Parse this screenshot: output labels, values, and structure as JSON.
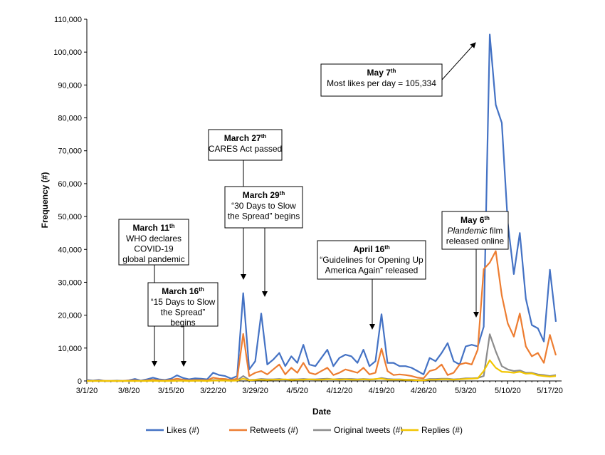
{
  "chart_data": {
    "type": "line",
    "x_label": "Date",
    "y_label": "Frequency (#)",
    "categories": [
      "3/1/20",
      null,
      null,
      null,
      null,
      null,
      null,
      "3/8/20",
      null,
      null,
      null,
      null,
      null,
      null,
      "3/15/20",
      null,
      null,
      null,
      null,
      null,
      null,
      "3/22/20",
      null,
      null,
      null,
      null,
      null,
      null,
      "3/29/20",
      null,
      null,
      null,
      null,
      null,
      null,
      "4/5/20",
      null,
      null,
      null,
      null,
      null,
      null,
      "4/12/20",
      null,
      null,
      null,
      null,
      null,
      null,
      "4/19/20",
      null,
      null,
      null,
      null,
      null,
      null,
      "4/26/20",
      null,
      null,
      null,
      null,
      null,
      null,
      "5/3/20",
      null,
      null,
      null,
      null,
      null,
      null,
      "5/10/20",
      null,
      null,
      null,
      null,
      null,
      null,
      "5/17/20",
      null
    ],
    "series": [
      {
        "name": "Likes (#)",
        "color": "#4472c4",
        "values": [
          300,
          100,
          300,
          0,
          0,
          100,
          0,
          200,
          600,
          100,
          500,
          1000,
          500,
          300,
          700,
          1700,
          900,
          500,
          800,
          700,
          500,
          2500,
          1800,
          1500,
          700,
          1500,
          26700,
          3500,
          6000,
          20500,
          5000,
          6500,
          8500,
          4500,
          7500,
          5500,
          11000,
          5000,
          4500,
          7000,
          9500,
          4500,
          7000,
          8000,
          7500,
          5500,
          9500,
          4500,
          6000,
          20300,
          5500,
          5500,
          4500,
          4500,
          4000,
          3000,
          2000,
          7000,
          6000,
          8500,
          11500,
          6000,
          5000,
          10500,
          11000,
          10500,
          16500,
          105334,
          84000,
          78500,
          48000,
          32500,
          45000,
          25000,
          17000,
          16000,
          12000,
          33800,
          18000
        ]
      },
      {
        "name": "Retweets (#)",
        "color": "#ed7d31",
        "values": [
          100,
          0,
          100,
          0,
          0,
          0,
          0,
          100,
          200,
          0,
          200,
          400,
          200,
          100,
          300,
          700,
          400,
          200,
          300,
          300,
          200,
          1000,
          700,
          600,
          300,
          700,
          14300,
          1500,
          2500,
          3000,
          2000,
          3500,
          5000,
          2000,
          4000,
          2500,
          5500,
          2500,
          2000,
          3000,
          4000,
          1800,
          2500,
          3500,
          3000,
          2500,
          4000,
          2000,
          2500,
          9800,
          3000,
          1800,
          2000,
          1800,
          1500,
          1000,
          800,
          3000,
          3500,
          5000,
          1800,
          2500,
          5000,
          5500,
          5000,
          9500,
          34000,
          36000,
          39500,
          26000,
          17500,
          13500,
          20500,
          10500,
          7500,
          8500,
          5500,
          14000,
          7800
        ]
      },
      {
        "name": "Original tweets (#)",
        "color": "#8c8c8c",
        "values": [
          0,
          0,
          0,
          0,
          0,
          0,
          0,
          0,
          50,
          0,
          50,
          100,
          50,
          0,
          50,
          150,
          100,
          50,
          100,
          100,
          50,
          300,
          200,
          200,
          100,
          200,
          1500,
          300,
          400,
          600,
          500,
          500,
          600,
          400,
          500,
          500,
          600,
          500,
          500,
          600,
          700,
          500,
          600,
          600,
          600,
          500,
          600,
          500,
          500,
          900,
          600,
          500,
          500,
          400,
          400,
          300,
          300,
          600,
          600,
          700,
          700,
          500,
          600,
          800,
          800,
          900,
          1500,
          14200,
          9000,
          4500,
          3500,
          3000,
          3200,
          2500,
          2500,
          2000,
          1800,
          1500,
          1800
        ]
      },
      {
        "name": "Replies (#)",
        "color": "#f2c500",
        "values": [
          0,
          0,
          0,
          0,
          0,
          0,
          0,
          0,
          0,
          0,
          0,
          50,
          0,
          0,
          0,
          50,
          50,
          0,
          50,
          50,
          0,
          100,
          100,
          100,
          50,
          100,
          700,
          200,
          300,
          400,
          300,
          400,
          400,
          500,
          300,
          400,
          400,
          500,
          400,
          400,
          500,
          500,
          400,
          500,
          400,
          400,
          500,
          400,
          600,
          700,
          400,
          400,
          400,
          300,
          300,
          200,
          200,
          400,
          400,
          500,
          500,
          400,
          500,
          600,
          700,
          800,
          3000,
          6300,
          4000,
          2800,
          2700,
          2500,
          2800,
          2200,
          2300,
          1700,
          1500,
          1300,
          1500
        ]
      }
    ],
    "ylim": [
      0,
      110000
    ],
    "yticks": [
      0,
      {
        "value": 10000,
        "label": "10,000"
      },
      {
        "value": 20000,
        "label": "20,000"
      },
      {
        "value": 30000,
        "label": "30,000"
      },
      {
        "value": 40000,
        "label": "40,000"
      },
      {
        "value": 50000,
        "label": "50,000"
      },
      {
        "value": 60000,
        "label": "60,000"
      },
      {
        "value": 70000,
        "label": "70,000"
      },
      {
        "value": 80000,
        "label": "80,000"
      },
      {
        "value": 90000,
        "label": "90,000"
      },
      {
        "value": 100000,
        "label": "100,000"
      },
      {
        "value": 110000,
        "label": "110,000"
      }
    ],
    "grid": false,
    "legend": "bottom",
    "annotations": [
      {
        "title": "March 11",
        "sup": "th",
        "lines": [
          "WHO declares",
          "COVID-19",
          "global pandemic"
        ]
      },
      {
        "title": "March 16",
        "sup": "th",
        "lines": [
          "“15 Days to Slow",
          "the Spread”",
          "begins"
        ]
      },
      {
        "title": "March 27",
        "sup": "th",
        "lines": [
          "CARES Act passed"
        ]
      },
      {
        "title": "March 29",
        "sup": "th",
        "lines": [
          "“30 Days to Slow",
          "the Spread” begins"
        ]
      },
      {
        "title": "April 16",
        "sup": "th",
        "lines": [
          "“Guidelines for Opening Up",
          "America Again” released"
        ]
      },
      {
        "title": "May 6",
        "sup": "th",
        "italic": "Plandemic",
        "lines": [
          " film",
          "released online"
        ]
      },
      {
        "title": "May 7",
        "sup": "th",
        "lines": [
          "Most likes per day = 105,334"
        ]
      }
    ]
  }
}
